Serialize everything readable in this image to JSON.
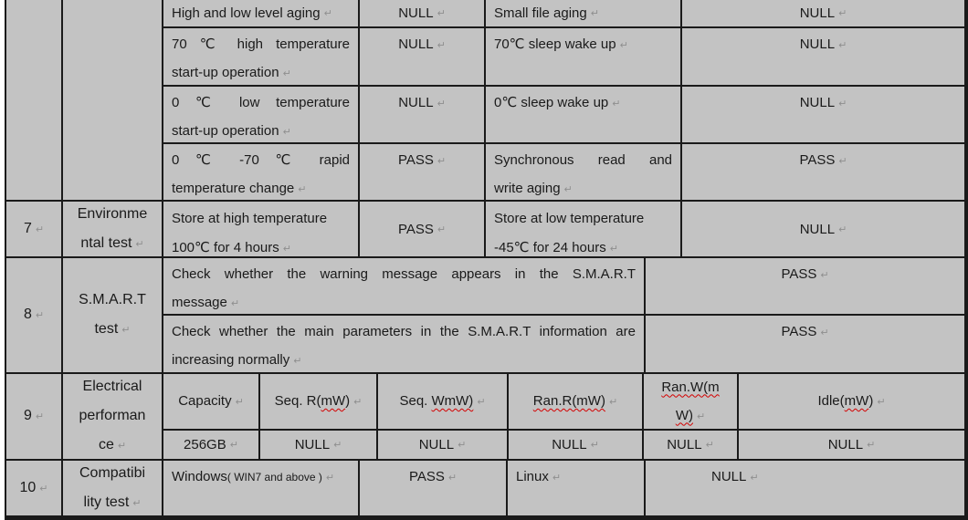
{
  "glyphs": {
    "cell_end": "↵"
  },
  "colors": {
    "table_bg": "#c3c3c3",
    "border": "#1a1a1a",
    "text": "#1a1a1a",
    "end_mark": "#8f8f8f",
    "spellcheck_squiggle": "#d40000"
  },
  "aging": {
    "r1": {
      "item1": "High and low level aging",
      "result1": "NULL",
      "item2": "Small file aging",
      "result2": "NULL"
    },
    "r2": {
      "item1_l1": "70 ℃  high temperature",
      "item1_l2": "start-up operation",
      "result1": "NULL",
      "item2": "70℃  sleep wake up",
      "result2": "NULL"
    },
    "r3": {
      "item1_l1": "0 ℃  low temperature",
      "item1_l2": "start-up operation",
      "result1": "NULL",
      "item2": "0℃  sleep wake up",
      "result2": "NULL"
    },
    "r4": {
      "item1_l1": "0 ℃ -70 ℃  rapid",
      "item1_l2": "temperature change",
      "result1": "PASS",
      "item2_l1": "Synchronous read and",
      "item2_l2": "write aging",
      "result2": "PASS"
    }
  },
  "row7": {
    "num": "7",
    "category": "Environme\nntal test",
    "item1_l1": "Store at high temperature",
    "item1_l2": "100℃  for 4 hours",
    "result1": "PASS",
    "item2_l1": "Store at low temperature",
    "item2_l2": "-45℃  for 24 hours",
    "result2": "NULL"
  },
  "row8": {
    "num": "8",
    "category": "S.M.A.R.T\ntest",
    "check1_l1": "Check whether the warning message appears in the S.M.A.R.T",
    "check1_l2": "message",
    "result1": "PASS",
    "check2_l1": "Check whether the main parameters in the S.M.A.R.T information are",
    "check2_l2": "increasing normally",
    "result2": "PASS"
  },
  "row9": {
    "num": "9",
    "category": "Electrical\nperforman\nce",
    "headers": {
      "capacity": "Capacity",
      "seq_r": {
        "pre": "Seq. R(",
        "sq": "mW",
        "post": ")"
      },
      "seq_w": {
        "pre": "Seq. ",
        "sq": "WmW)"
      },
      "ran_r": {
        "sq": "Ran.R(mW)"
      },
      "ran_w": {
        "l1": "Ran.W(m",
        "l2": "W)"
      },
      "idle": {
        "pre": "Idle(",
        "sq": "mW",
        "post": ")"
      }
    },
    "values": {
      "capacity": "256GB",
      "seq_r": "NULL",
      "seq_w": "NULL",
      "ran_r": "NULL",
      "ran_w": "NULL",
      "idle": "NULL"
    }
  },
  "row10": {
    "num": "10",
    "category": "Compatibi\nlity test",
    "os1": "Windows",
    "os1_note": "( WIN7 and above )",
    "result1": "PASS",
    "os2": "Linux",
    "result2": "NULL"
  }
}
